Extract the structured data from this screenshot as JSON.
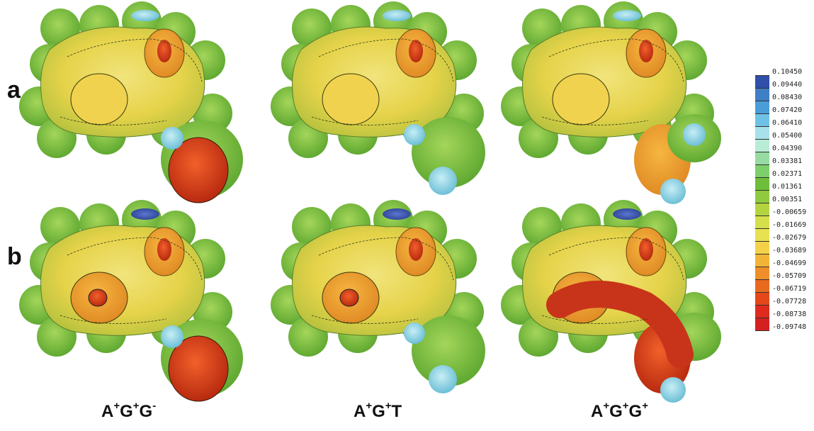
{
  "rows": [
    {
      "label": "a"
    },
    {
      "label": "b"
    }
  ],
  "columns": [
    {
      "base": "A",
      "c1": "+",
      "g1": "G",
      "c2": "+",
      "last": "G",
      "c3": "-"
    },
    {
      "base": "A",
      "c1": "+",
      "g1": "G",
      "c2": "+",
      "last": "T",
      "c3": ""
    },
    {
      "base": "A",
      "c1": "+",
      "g1": "G",
      "c2": "+",
      "last": "G",
      "c3": "+"
    }
  ],
  "legend": {
    "values": [
      "0.10450",
      "0.09440",
      "0.08430",
      "0.07420",
      "0.06410",
      "0.05400",
      "0.04390",
      "0.03381",
      "0.02371",
      "0.01361",
      "0.00351",
      "-0.00659",
      "-0.01669",
      "-0.02679",
      "-0.03689",
      "-0.04699",
      "-0.05709",
      "-0.06719",
      "-0.07728",
      "-0.08738",
      "-0.09748"
    ],
    "colors": [
      "#2f4fa8",
      "#3f7fc6",
      "#4a9ed8",
      "#6fc2e6",
      "#a8e1ea",
      "#b9ecd6",
      "#97dba2",
      "#7dcf6b",
      "#6fbe3b",
      "#8fcb3e",
      "#b3d43f",
      "#d4e04b",
      "#e8e152",
      "#f3d24a",
      "#f2b437",
      "#ee8f2a",
      "#e86a1f",
      "#e4471a",
      "#df2a1f",
      "#d42020"
    ]
  },
  "molecules": {
    "field_colors": {
      "green": "#88c63f",
      "yellow": "#e7d94d",
      "orange": "#efa43a",
      "red": "#e3441c",
      "cyan": "#8fd6e4",
      "blue": "#3f5fb8"
    }
  }
}
